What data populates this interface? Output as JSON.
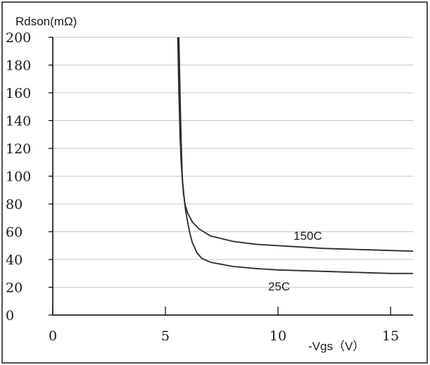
{
  "chart_data": {
    "type": "line",
    "ylabel": "Rdson(mΩ)",
    "xlabel": "-Vgs（V）",
    "xlim": [
      0,
      16
    ],
    "ylim": [
      0,
      200
    ],
    "x_ticks": [
      0,
      5,
      10,
      15
    ],
    "y_ticks": [
      0,
      20,
      40,
      60,
      80,
      100,
      120,
      140,
      160,
      180,
      200
    ],
    "grid": true,
    "series": [
      {
        "name": "150C",
        "x": [
          5.6,
          5.65,
          5.7,
          5.75,
          5.8,
          5.85,
          5.9,
          6.0,
          6.2,
          6.5,
          7.0,
          8.0,
          9.0,
          10.0,
          11.0,
          12.0,
          13.0,
          14.0,
          15.0,
          16.0
        ],
        "y": [
          200,
          160,
          125,
          100,
          88,
          82,
          78,
          73,
          67,
          62,
          57,
          53,
          51,
          50,
          49,
          48,
          47.5,
          47,
          46.5,
          46
        ]
      },
      {
        "name": "25C",
        "x": [
          5.55,
          5.6,
          5.65,
          5.7,
          5.75,
          5.8,
          5.85,
          5.9,
          6.0,
          6.1,
          6.2,
          6.4,
          6.6,
          7.0,
          8.0,
          9.0,
          10.0,
          11.0,
          12.0,
          13.0,
          14.0,
          15.0,
          16.0
        ],
        "y": [
          200,
          160,
          130,
          110,
          98,
          90,
          82,
          75,
          66,
          58,
          52,
          45,
          41,
          38,
          35,
          33.5,
          32.5,
          32,
          31.5,
          31,
          30.5,
          30,
          30
        ]
      }
    ]
  }
}
